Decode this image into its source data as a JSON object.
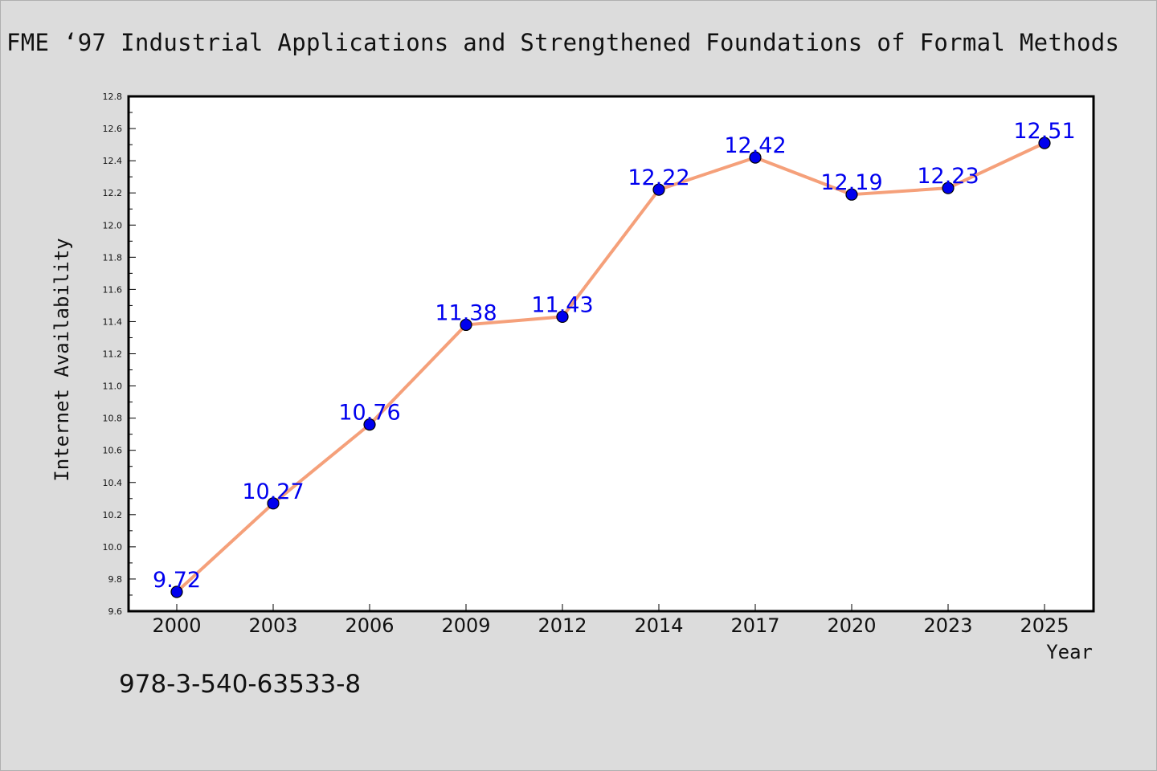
{
  "chart_data": {
    "type": "line",
    "title": "FME  ‘97 Industrial Applications and Strengthened Foundations of Formal Methods",
    "xlabel": "Year",
    "ylabel": "Internet Availability",
    "categories": [
      "2000",
      "2003",
      "2006",
      "2009",
      "2012",
      "2014",
      "2017",
      "2020",
      "2023",
      "2025"
    ],
    "series": [
      {
        "values": [
          9.72,
          10.27,
          10.76,
          11.38,
          11.43,
          12.22,
          12.42,
          12.19,
          12.23,
          12.51
        ],
        "labels": [
          "9.72",
          "10.27",
          "10.76",
          "11.38",
          "11.43",
          "12.22",
          "12.42",
          "12.19",
          "12.23",
          "12.51"
        ]
      }
    ],
    "ylim": [
      9.6,
      12.8
    ],
    "yticks": [
      "9.6",
      "9.8",
      "10.0",
      "10.2",
      "10.4",
      "10.6",
      "10.8",
      "11.0",
      "11.2",
      "11.4",
      "11.6",
      "11.8",
      "12.0",
      "12.2",
      "12.4",
      "12.6",
      "12.8"
    ],
    "grid": false,
    "legend": "none",
    "colors": {
      "line": "#f5a07a",
      "marker": "#0000ee",
      "label": "#0000ee",
      "axis": "#000000",
      "background": "#dcdcdc",
      "plot_area": "#ffffff"
    }
  },
  "footer": {
    "isbn": "978-3-540-63533-8"
  }
}
